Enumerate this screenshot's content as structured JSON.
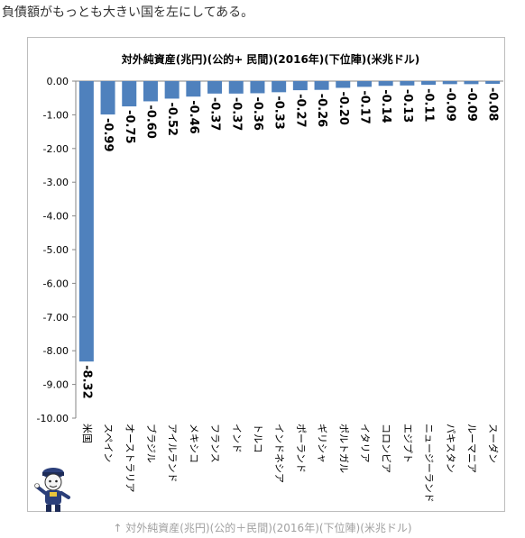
{
  "page": {
    "intro_text": "負債額がもっとも大きい国を左にしてある。",
    "caption": "↑ 対外純資産(兆円)(公的＋民間)(2016年)(下位陣)(米兆ドル)",
    "mascot_icon": "mascot-character-icon"
  },
  "chart_data": {
    "type": "bar",
    "title": "対外純資産(兆円)(公的+ 民間)(2016年)(下位陣)(米兆ドル)",
    "xlabel": "",
    "ylabel": "",
    "categories": [
      "米国",
      "スペイン",
      "オーストラリア",
      "ブラジル",
      "アイルランド",
      "メキシコ",
      "フランス",
      "インド",
      "トルコ",
      "インドネシア",
      "ポーランド",
      "ギリシャ",
      "ポルトガル",
      "イタリア",
      "コロンビア",
      "エジプト",
      "ニュージーランド",
      "パキスタン",
      "ルーマニア",
      "スーダン"
    ],
    "values": [
      -8.32,
      -0.99,
      -0.75,
      -0.6,
      -0.52,
      -0.46,
      -0.37,
      -0.37,
      -0.36,
      -0.33,
      -0.27,
      -0.26,
      -0.2,
      -0.17,
      -0.14,
      -0.13,
      -0.11,
      -0.09,
      -0.09,
      -0.08
    ],
    "value_labels": [
      "-8.32",
      "-0.99",
      "-0.75",
      "-0.60",
      "-0.52",
      "-0.46",
      "-0.37",
      "-0.37",
      "-0.36",
      "-0.33",
      "-0.27",
      "-0.26",
      "-0.20",
      "-0.17",
      "-0.14",
      "-0.13",
      "-0.11",
      "-0.09",
      "-0.09",
      "-0.08"
    ],
    "ylim": [
      -10,
      0
    ],
    "yticks": [
      0,
      -1,
      -2,
      -3,
      -4,
      -5,
      -6,
      -7,
      -8,
      -9,
      -10
    ],
    "ytick_labels": [
      "0.00",
      "-1.00",
      "-2.00",
      "-3.00",
      "-4.00",
      "-5.00",
      "-6.00",
      "-7.00",
      "-8.00",
      "-9.00",
      "-10.00"
    ],
    "grid": false,
    "legend": "none",
    "bar_color": "#4f81bd"
  }
}
